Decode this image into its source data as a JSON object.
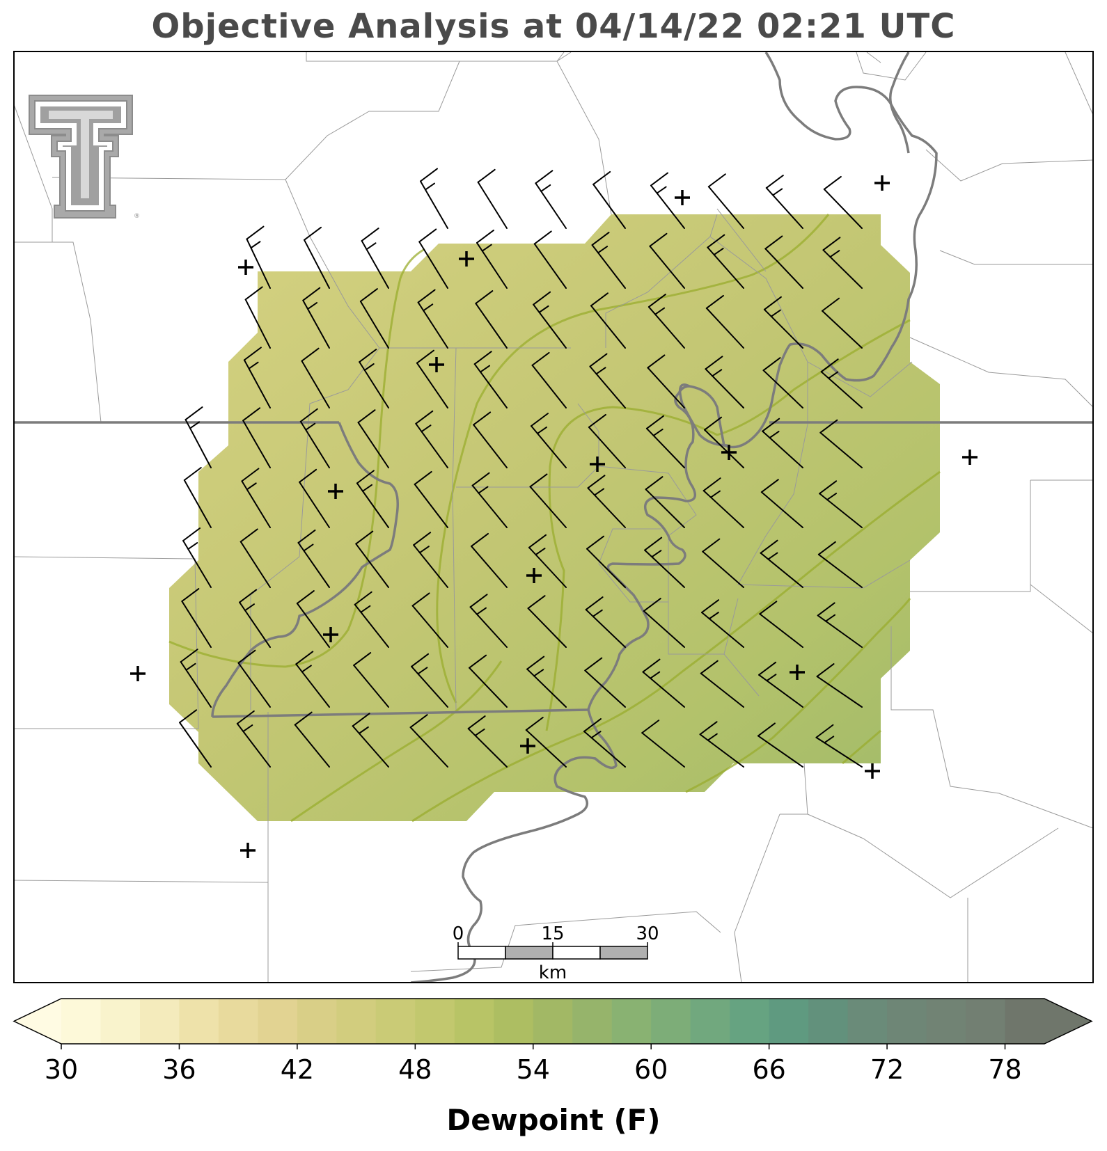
{
  "title": "Objective Analysis at 04/14/22 02:21 UTC",
  "colorbar": {
    "label": "Dewpoint (F)",
    "min": 30,
    "max": 80,
    "step": 2,
    "ticks": [
      "30",
      "36",
      "42",
      "48",
      "54",
      "60",
      "66",
      "72",
      "78"
    ],
    "colors": [
      "#fdf9d9",
      "#f9f3cc",
      "#f4ebbc",
      "#eee2aa",
      "#e8da9d",
      "#e2d392",
      "#d9cf87",
      "#d2cd7e",
      "#cacb76",
      "#c2c86e",
      "#b8c466",
      "#adbe62",
      "#a2b865",
      "#96b46b",
      "#89b272",
      "#7dad78",
      "#71a87e",
      "#66a381",
      "#5f9a80",
      "#62917c",
      "#6a8b79",
      "#6e8676",
      "#718374",
      "#727f72",
      "#6f766b"
    ]
  },
  "scale_bar": {
    "ticks": [
      "0",
      "15",
      "30"
    ],
    "unit": "km"
  },
  "legend_colors": {
    "contour": "#9aad2e",
    "boundary": "#7c7c7c",
    "county": "#9a9a9a"
  }
}
